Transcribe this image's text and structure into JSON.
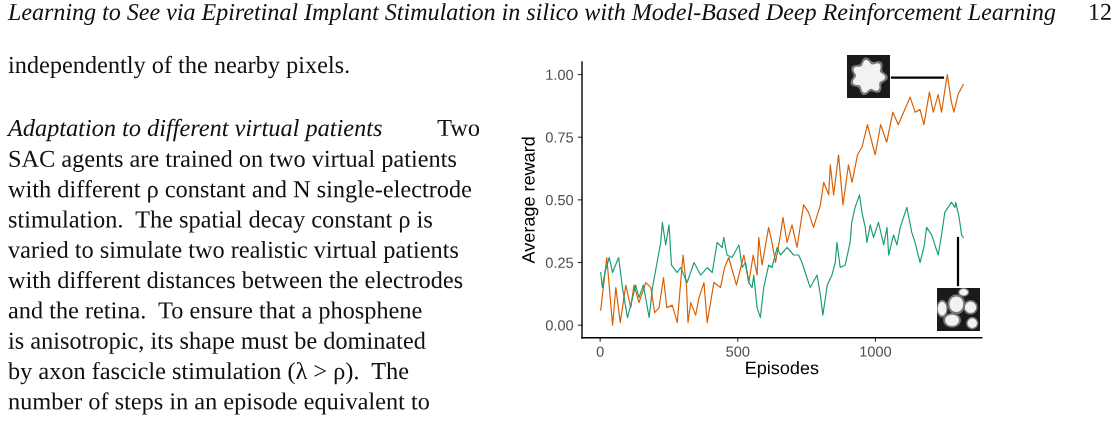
{
  "chart_data": {
    "type": "line",
    "xlabel": "Episodes",
    "ylabel": "Average reward",
    "xlim": [
      -66,
      1386
    ],
    "ylim": [
      -0.05,
      1.05
    ],
    "xticks": [
      0,
      500,
      1000
    ],
    "yticks": [
      {
        "value": 0,
        "label": "0.00"
      },
      {
        "value": 0.25,
        "label": "0.25"
      },
      {
        "value": 0.5,
        "label": "0.50"
      },
      {
        "value": 0.75,
        "label": "0.75"
      },
      {
        "value": 1,
        "label": "1.00"
      }
    ],
    "grid": false,
    "series": [
      {
        "color": "#d95f02",
        "x": [
          2,
          24,
          45,
          57,
          73,
          93,
          111,
          123,
          141,
          166,
          184,
          198,
          214,
          230,
          242,
          262,
          280,
          301,
          314,
          319,
          329,
          347,
          359,
          377,
          389,
          413,
          437,
          452,
          467,
          495,
          522,
          540,
          556,
          570,
          576,
          588,
          612,
          624,
          637,
          655,
          664,
          679,
          697,
          715,
          739,
          757,
          775,
          800,
          812,
          830,
          836,
          848,
          866,
          882,
          902,
          915,
          935,
          951,
          971,
          987,
          999,
          1019,
          1041,
          1063,
          1083,
          1126,
          1144,
          1162,
          1176,
          1196,
          1210,
          1228,
          1240,
          1261,
          1276,
          1285,
          1300,
          1319
        ],
        "values": [
          0.06,
          0.27,
          0.0,
          0.15,
          0.01,
          0.16,
          0.07,
          0.16,
          0.09,
          0.17,
          0.15,
          0.05,
          0.07,
          0.19,
          0.07,
          0.08,
          0.01,
          0.28,
          0.15,
          0.01,
          0.09,
          0.04,
          0.11,
          0.17,
          0.01,
          0.17,
          0.15,
          0.23,
          0.27,
          0.16,
          0.28,
          0.17,
          0.28,
          0.2,
          0.35,
          0.24,
          0.39,
          0.33,
          0.25,
          0.36,
          0.43,
          0.33,
          0.4,
          0.31,
          0.48,
          0.45,
          0.39,
          0.48,
          0.57,
          0.52,
          0.64,
          0.52,
          0.68,
          0.48,
          0.64,
          0.57,
          0.68,
          0.71,
          0.8,
          0.73,
          0.68,
          0.8,
          0.73,
          0.85,
          0.8,
          0.91,
          0.85,
          0.86,
          0.8,
          0.93,
          0.85,
          0.92,
          0.85,
          1.0,
          0.89,
          0.85,
          0.92,
          0.96
        ]
      },
      {
        "color": "#1b9e77",
        "x": [
          2,
          8,
          17,
          33,
          45,
          67,
          81,
          99,
          111,
          129,
          141,
          157,
          178,
          190,
          205,
          220,
          226,
          238,
          250,
          259,
          280,
          292,
          316,
          341,
          365,
          389,
          407,
          413,
          425,
          443,
          449,
          461,
          479,
          504,
          516,
          528,
          540,
          552,
          558,
          570,
          582,
          594,
          612,
          624,
          643,
          655,
          679,
          703,
          721,
          733,
          745,
          763,
          788,
          800,
          809,
          825,
          842,
          854,
          860,
          872,
          890,
          908,
          914,
          926,
          942,
          951,
          963,
          969,
          981,
          993,
          1011,
          1030,
          1042,
          1048,
          1066,
          1078,
          1090,
          1114,
          1132,
          1144,
          1162,
          1176,
          1186,
          1204,
          1228,
          1240,
          1252,
          1276,
          1289,
          1292,
          1304,
          1313,
          1319
        ],
        "values": [
          0.21,
          0.15,
          0.21,
          0.27,
          0.21,
          0.27,
          0.15,
          0.03,
          0.08,
          0.16,
          0.11,
          0.16,
          0.03,
          0.15,
          0.24,
          0.33,
          0.41,
          0.32,
          0.4,
          0.24,
          0.21,
          0.23,
          0.17,
          0.25,
          0.2,
          0.23,
          0.21,
          0.25,
          0.33,
          0.31,
          0.35,
          0.28,
          0.27,
          0.32,
          0.23,
          0.25,
          0.17,
          0.15,
          0.2,
          0.07,
          0.03,
          0.15,
          0.24,
          0.23,
          0.31,
          0.28,
          0.31,
          0.28,
          0.28,
          0.25,
          0.21,
          0.15,
          0.2,
          0.12,
          0.04,
          0.16,
          0.2,
          0.25,
          0.33,
          0.23,
          0.24,
          0.33,
          0.41,
          0.47,
          0.52,
          0.45,
          0.39,
          0.33,
          0.4,
          0.35,
          0.41,
          0.32,
          0.39,
          0.28,
          0.36,
          0.32,
          0.39,
          0.47,
          0.37,
          0.33,
          0.25,
          0.31,
          0.39,
          0.36,
          0.28,
          0.36,
          0.45,
          0.49,
          0.47,
          0.49,
          0.43,
          0.36,
          0.35
        ]
      }
    ],
    "annotations": [
      "Learning to See via Epiretinal Implant Stimulation in silico with Model-Based Deep Reinforcement Learning",
      "12",
      "independently of the nearby pixels.",
      "Adaptation to different virtual patients",
      "Two",
      "SAC agents are trained on two virtual patients",
      "with different ρ constant and N single-electrode",
      "stimulation.  The spatial decay constant ρ is",
      "varied to simulate two realistic virtual patients",
      "with different distances between the electrodes",
      "and the retina.  To ensure that a phosphene",
      "is anisotropic, its shape must be dominated",
      "by axon fascicle stimulation (λ > ρ).  The",
      "number of steps in an episode equivalent to"
    ]
  }
}
